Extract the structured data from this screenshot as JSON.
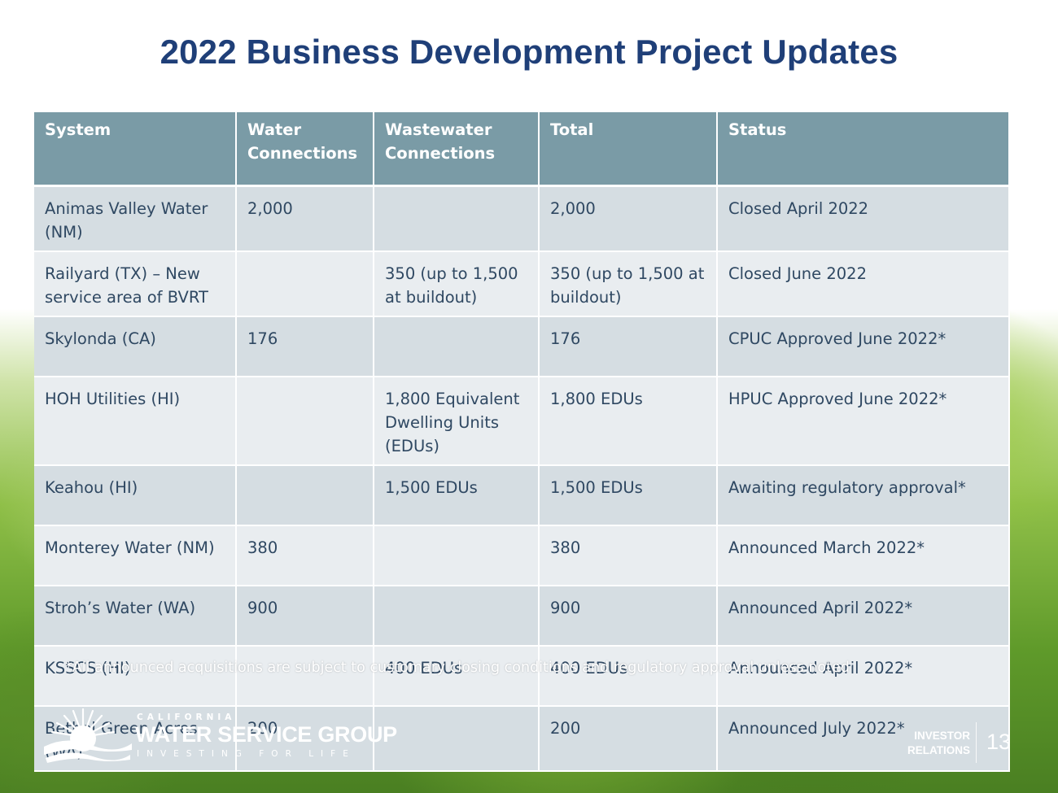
{
  "title": "2022 Business Development Project Updates",
  "table": {
    "headers": [
      "System",
      "Water Connections",
      "Wastewater Connections",
      "Total",
      "Status"
    ],
    "rows": [
      {
        "system": "Animas Valley Water (NM)",
        "water": "2,000",
        "wastewater": "",
        "total": "2,000",
        "status": "Closed April 2022"
      },
      {
        "system": "Railyard (TX) – New service area of BVRT",
        "water": "",
        "wastewater": "350 (up to 1,500 at buildout)",
        "total": "350 (up to 1,500 at buildout)",
        "status": "Closed June 2022"
      },
      {
        "system": "Skylonda (CA)",
        "water": "176",
        "wastewater": "",
        "total": "176",
        "status": "CPUC Approved June 2022*"
      },
      {
        "system": "HOH Utilities (HI)",
        "water": "",
        "wastewater": "1,800 Equivalent Dwelling Units (EDUs)",
        "total": "1,800 EDUs",
        "status": "HPUC Approved June 2022*"
      },
      {
        "system": "Keahou (HI)",
        "water": "",
        "wastewater": "1,500 EDUs",
        "total": "1,500 EDUs",
        "status": "Awaiting regulatory approval*"
      },
      {
        "system": "Monterey Water (NM)",
        "water": "380",
        "wastewater": "",
        "total": "380",
        "status": "Announced March 2022*"
      },
      {
        "system": "Stroh’s Water (WA)",
        "water": "900",
        "wastewater": "",
        "total": "900",
        "status": "Announced April 2022*"
      },
      {
        "system": "KSSCS (HI)",
        "water": "",
        "wastewater": "400 EDUs",
        "total": "400 EDUs",
        "status": "Announced April 2022*"
      },
      {
        "system": "Bethel Green Acres (WA)",
        "water": "200",
        "wastewater": "",
        "total": "200",
        "status": "Announced July 2022*"
      }
    ]
  },
  "footnote": "*All announced acquisitions are subject to customary closing conditions and regulatory approval unless noted",
  "logo": {
    "line1": "CALIFORNIA",
    "line2": "WATER SERVICE GROUP",
    "line3": "INVESTING FOR LIFE"
  },
  "investor_relations": {
    "line1": "INVESTOR",
    "line2": "RELATIONS"
  },
  "page_number": "13",
  "colors": {
    "title": "#1f3f78",
    "header_bg": "#7a9ba6",
    "row_dark": "#d5dde2",
    "row_light": "#e9edf0",
    "text": "#2f4862",
    "separator": "#29476b"
  }
}
